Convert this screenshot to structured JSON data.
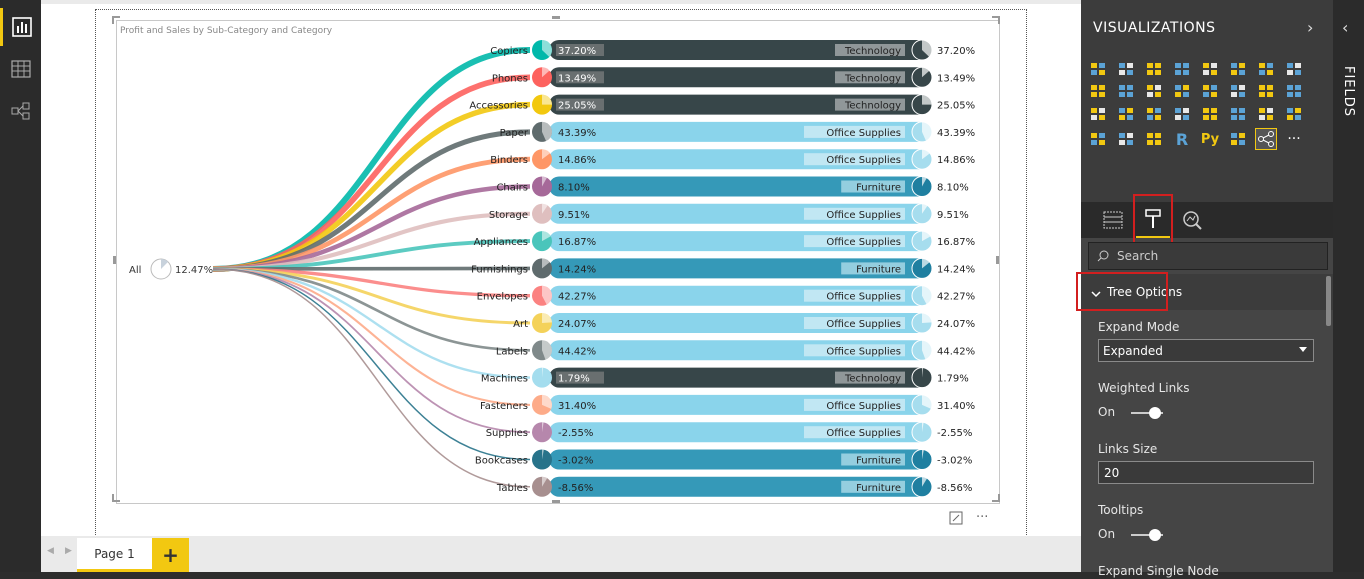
{
  "left_rail": {
    "items": [
      "report-view",
      "data-view",
      "relationship-view"
    ]
  },
  "tabs": {
    "page1": "Page 1",
    "add": "+"
  },
  "viz_pane": {
    "title": "VISUALIZATIONS",
    "fields_title": "FIELDS",
    "search_placeholder": "Search",
    "section": "Tree Options",
    "expand_mode_label": "Expand Mode",
    "expand_mode_value": "Expanded",
    "weighted_links_label": "Weighted Links",
    "weighted_links_value": "On",
    "links_size_label": "Links Size",
    "links_size_value": "20",
    "tooltips_label": "Tooltips",
    "tooltips_value": "On",
    "expand_single_label": "Expand Single Node",
    "more_label": "..."
  },
  "chart_data": {
    "type": "tree",
    "title": "Profit and Sales by Sub-Category and Category",
    "root": {
      "label": "All",
      "value": 12.47
    },
    "nodes": [
      {
        "label": "Copiers",
        "value": "37.20%",
        "category": "Technology",
        "right": "37.20%",
        "color": "#01b8aa",
        "bar": "#374649",
        "pie": 0.372
      },
      {
        "label": "Phones",
        "value": "13.49%",
        "category": "Technology",
        "right": "13.49%",
        "color": "#fd625e",
        "bar": "#374649",
        "pie": 0.135
      },
      {
        "label": "Accessories",
        "value": "25.05%",
        "category": "Technology",
        "right": "25.05%",
        "color": "#f2c80f",
        "bar": "#374649",
        "pie": 0.25
      },
      {
        "label": "Paper",
        "value": "43.39%",
        "category": "Office Supplies",
        "right": "43.39%",
        "color": "#5f6b6d",
        "bar": "#8ad4eb",
        "pie": 0.434
      },
      {
        "label": "Binders",
        "value": "14.86%",
        "category": "Office Supplies",
        "right": "14.86%",
        "color": "#fe9666",
        "bar": "#8ad4eb",
        "pie": 0.149
      },
      {
        "label": "Chairs",
        "value": "8.10%",
        "category": "Furniture",
        "right": "8.10%",
        "color": "#a66999",
        "bar": "#3599b8",
        "pie": 0.081
      },
      {
        "label": "Storage",
        "value": "9.51%",
        "category": "Office Supplies",
        "right": "9.51%",
        "color": "#dfbfbf",
        "bar": "#8ad4eb",
        "pie": 0.095
      },
      {
        "label": "Appliances",
        "value": "16.87%",
        "category": "Office Supplies",
        "right": "16.87%",
        "color": "#4ac5bb",
        "bar": "#8ad4eb",
        "pie": 0.169
      },
      {
        "label": "Furnishings",
        "value": "14.24%",
        "category": "Furniture",
        "right": "14.24%",
        "color": "#5f6b6d",
        "bar": "#3599b8",
        "pie": 0.142
      },
      {
        "label": "Envelopes",
        "value": "42.27%",
        "category": "Office Supplies",
        "right": "42.27%",
        "color": "#fb8281",
        "bar": "#8ad4eb",
        "pie": 0.423
      },
      {
        "label": "Art",
        "value": "24.07%",
        "category": "Office Supplies",
        "right": "24.07%",
        "color": "#f4d25a",
        "bar": "#8ad4eb",
        "pie": 0.241
      },
      {
        "label": "Labels",
        "value": "44.42%",
        "category": "Office Supplies",
        "right": "44.42%",
        "color": "#7f898a",
        "bar": "#8ad4eb",
        "pie": 0.444
      },
      {
        "label": "Machines",
        "value": "1.79%",
        "category": "Technology",
        "right": "1.79%",
        "color": "#a4ddee",
        "bar": "#374649",
        "pie": 0.018
      },
      {
        "label": "Fasteners",
        "value": "31.40%",
        "category": "Office Supplies",
        "right": "31.40%",
        "color": "#fdab89",
        "bar": "#8ad4eb",
        "pie": 0.314
      },
      {
        "label": "Supplies",
        "value": "-2.55%",
        "category": "Office Supplies",
        "right": "-2.55%",
        "color": "#b687ac",
        "bar": "#8ad4eb",
        "pie": 0.026
      },
      {
        "label": "Bookcases",
        "value": "-3.02%",
        "category": "Furniture",
        "right": "-3.02%",
        "color": "#28738a",
        "bar": "#3599b8",
        "pie": 0.03
      },
      {
        "label": "Tables",
        "value": "-8.56%",
        "category": "Furniture",
        "right": "-8.56%",
        "color": "#a78f8f",
        "bar": "#3599b8",
        "pie": 0.086
      }
    ]
  }
}
